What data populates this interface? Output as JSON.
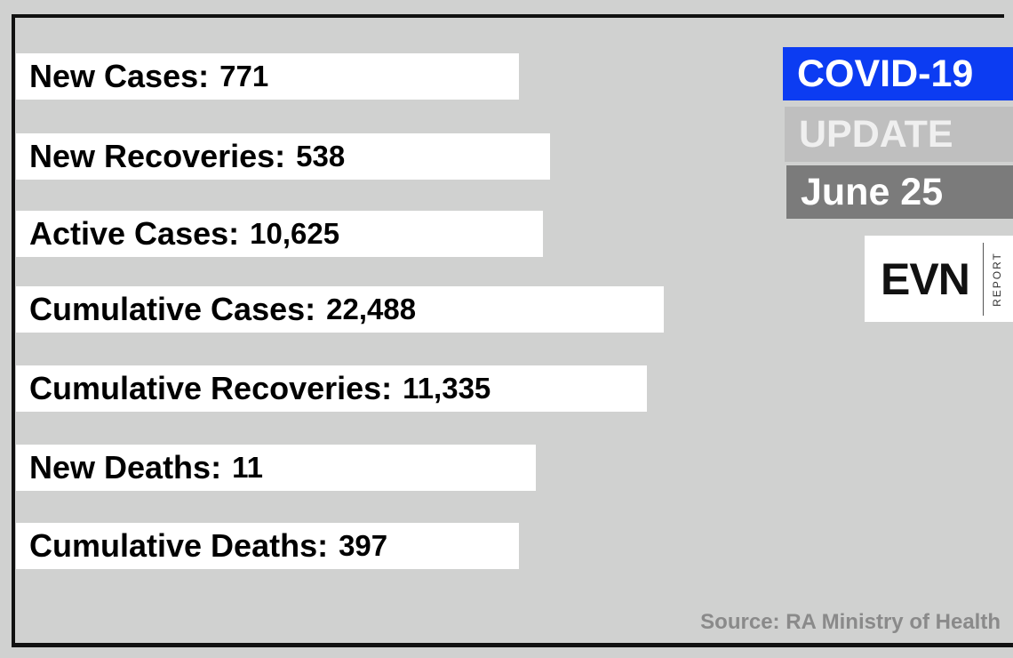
{
  "rows": [
    {
      "label": "New Cases:",
      "value": "771"
    },
    {
      "label": "New Recoveries:",
      "value": "538"
    },
    {
      "label": "Active Cases:",
      "value": "10,625"
    },
    {
      "label": "Cumulative Cases:",
      "value": "22,488"
    },
    {
      "label": "Cumulative Recoveries:",
      "value": "11,335"
    },
    {
      "label": "New Deaths:",
      "value": "11"
    },
    {
      "label": "Cumulative Deaths:",
      "value": "397"
    }
  ],
  "header": {
    "title": "COVID-19",
    "subtitle": "UPDATE",
    "date": "June 25"
  },
  "logo": {
    "name": "EVN",
    "tag": "REPORT"
  },
  "source": "Source: RA Ministry of Health"
}
